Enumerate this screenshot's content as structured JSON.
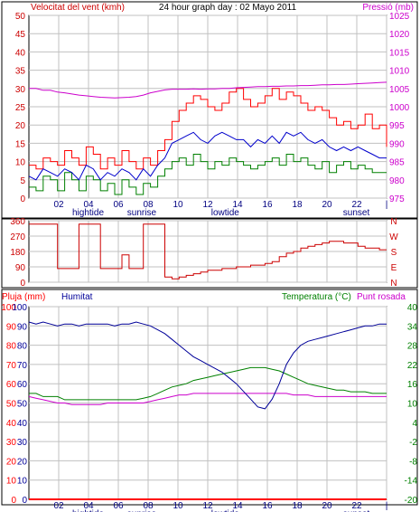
{
  "header": {
    "left_label": "Velocitat del vent (kmh)",
    "title": "24 hour graph day : 02 Mayo 2011",
    "right_label": "Pressió (mb)"
  },
  "middle_labels": [
    "N",
    "W",
    "S",
    "E",
    "N"
  ],
  "bottom_header": {
    "rain": "Pluja (mm)",
    "humidity": "Humitat",
    "temperature": "Temperatura (°C)",
    "dew": "Punt rosada"
  },
  "x_ticks": [
    "02",
    "04",
    "06",
    "08",
    "10",
    "12",
    "14",
    "16",
    "18",
    "20",
    "22",
    "|"
  ],
  "events": [
    "hightide",
    "sunrise",
    "lowtide",
    "sunset"
  ],
  "colors": {
    "wind_speed": "#ff0000",
    "wind_avg": "#0000cc",
    "wind_gust_low": "#008000",
    "pressure": "#cc00cc",
    "direction": "#cc0000",
    "humidity": "#000099",
    "temperature": "#008000",
    "dew": "#cc00cc",
    "rain": "#ff0000",
    "left_axis": "#cc0000",
    "right_axis": "#cc00cc",
    "grid": "#c0c0c0"
  },
  "chart_data": [
    {
      "type": "line",
      "ylim_left": [
        0,
        50
      ],
      "ylim_right": [
        975,
        1025
      ],
      "yticks_left": [
        "0",
        "5",
        "10",
        "15",
        "20",
        "25",
        "30",
        "35",
        "40",
        "45",
        "50"
      ],
      "yticks_right": [
        "975",
        "980",
        "985",
        "990",
        "995",
        "1000",
        "1005",
        "1010",
        "1015",
        "1020",
        "1025"
      ],
      "series": [
        {
          "values": [
            9,
            8,
            11,
            10,
            9,
            13,
            11,
            9,
            14,
            12,
            8,
            11,
            9,
            13,
            10,
            8,
            11,
            9,
            13,
            16,
            21,
            24,
            26,
            28,
            27,
            25,
            24,
            26,
            29,
            30,
            27,
            25,
            26,
            28,
            30,
            27,
            29,
            28,
            26,
            24,
            25,
            24,
            22,
            20,
            21,
            19,
            20,
            23,
            19,
            20,
            14
          ]
        },
        {
          "values": [
            6,
            5,
            8,
            7,
            6,
            8,
            7,
            5,
            9,
            8,
            5,
            7,
            6,
            8,
            7,
            5,
            8,
            6,
            9,
            11,
            15,
            16,
            17,
            18,
            16,
            15,
            17,
            18,
            17,
            16,
            16,
            14,
            16,
            15,
            17,
            15,
            18,
            17,
            18,
            16,
            15,
            16,
            14,
            13,
            14,
            13,
            14,
            13,
            12,
            11,
            11
          ]
        },
        {
          "values": [
            3,
            2,
            6,
            5,
            2,
            7,
            5,
            2,
            6,
            5,
            2,
            4,
            1,
            5,
            3,
            1,
            4,
            3,
            6,
            8,
            10,
            11,
            9,
            12,
            10,
            8,
            10,
            9,
            11,
            10,
            9,
            8,
            9,
            10,
            11,
            9,
            12,
            10,
            11,
            9,
            8,
            10,
            7,
            9,
            10,
            8,
            9,
            8,
            7,
            7,
            7
          ]
        },
        {
          "values": [
            1005,
            1005,
            1004.5,
            1004.5,
            1004,
            1003.8,
            1003.5,
            1003.2,
            1003,
            1002.8,
            1002.6,
            1002.5,
            1002.4,
            1002.5,
            1002.6,
            1002.8,
            1003.2,
            1003.8,
            1004.2,
            1004.6,
            1004.8,
            1004.8,
            1004.8,
            1004.9,
            1004.8,
            1004.9,
            1004.9,
            1005,
            1005,
            1005.2,
            1005.3,
            1005.4,
            1005.5,
            1005.5,
            1005.6,
            1005.6,
            1005.7,
            1005.7,
            1005.8,
            1005.8,
            1005.9,
            1006,
            1006,
            1006.1,
            1006.1,
            1006.2,
            1006.3,
            1006.4,
            1006.5,
            1006.6,
            1006.7
          ]
        }
      ]
    },
    {
      "type": "line",
      "ylim": [
        0,
        360
      ],
      "yticks": [
        "0",
        "90",
        "180",
        "270",
        "360"
      ],
      "series": [
        {
          "values": [
            340,
            340,
            340,
            340,
            80,
            80,
            80,
            340,
            340,
            340,
            80,
            80,
            80,
            160,
            80,
            80,
            340,
            340,
            340,
            30,
            20,
            30,
            40,
            50,
            60,
            70,
            70,
            80,
            80,
            90,
            90,
            100,
            100,
            110,
            120,
            150,
            170,
            180,
            200,
            210,
            220,
            230,
            240,
            240,
            230,
            230,
            210,
            200,
            200,
            190,
            190
          ]
        }
      ]
    },
    {
      "type": "line",
      "ylim_left": [
        0,
        100
      ],
      "ylim_right": [
        -20,
        40
      ],
      "yticks_left": [
        "0",
        "10",
        "20",
        "30",
        "40",
        "50",
        "60",
        "70",
        "80",
        "90",
        "100"
      ],
      "yticks_right": [
        "-20",
        "-14",
        "-8",
        "-2",
        "4",
        "10",
        "16",
        "22",
        "28",
        "34",
        "40"
      ],
      "series": [
        {
          "values": [
            92,
            91,
            92,
            91,
            90,
            91,
            91,
            90,
            91,
            91,
            91,
            91,
            90,
            91,
            91,
            92,
            91,
            90,
            88,
            86,
            83,
            80,
            77,
            74,
            72,
            70,
            68,
            66,
            63,
            60,
            56,
            52,
            48,
            47,
            52,
            60,
            70,
            76,
            80,
            82,
            83,
            84,
            85,
            86,
            87,
            88,
            89,
            90,
            90,
            91,
            91
          ]
        },
        {
          "values": [
            13,
            13,
            12,
            12,
            12,
            11,
            11,
            11,
            11,
            11,
            11,
            11,
            11,
            11,
            11,
            11,
            11.5,
            12,
            13,
            14,
            15,
            15.5,
            16,
            17,
            17.5,
            18,
            18.5,
            19,
            19.5,
            20,
            20.5,
            21,
            21,
            21,
            20.5,
            20,
            19,
            18,
            17,
            16,
            15.5,
            15,
            14.5,
            14,
            14,
            13.5,
            13.5,
            13.5,
            13,
            13,
            13
          ]
        },
        {
          "values": [
            12,
            11.5,
            11,
            10.5,
            10,
            10,
            9.5,
            9.5,
            9.5,
            9.5,
            9.5,
            10,
            10,
            10,
            10,
            10,
            10,
            10.5,
            11,
            11.5,
            12,
            12.5,
            12.5,
            13,
            13,
            13,
            13,
            13,
            13,
            13,
            13,
            13,
            13,
            13,
            13,
            13,
            13,
            12.5,
            12.5,
            12.5,
            12,
            12,
            12,
            12,
            12,
            12,
            12,
            12,
            12,
            12,
            12
          ]
        },
        {
          "values": [
            0,
            0,
            0,
            0,
            0,
            0,
            0,
            0,
            0,
            0,
            0,
            0,
            0,
            0,
            0,
            0,
            0,
            0,
            0,
            0,
            0,
            0,
            0,
            0,
            0,
            0,
            0,
            0,
            0,
            0,
            0,
            0,
            0,
            0,
            0,
            0,
            0,
            0,
            0,
            0,
            0,
            0,
            0,
            0,
            0,
            0,
            0,
            0,
            0,
            0,
            0
          ]
        }
      ]
    }
  ]
}
